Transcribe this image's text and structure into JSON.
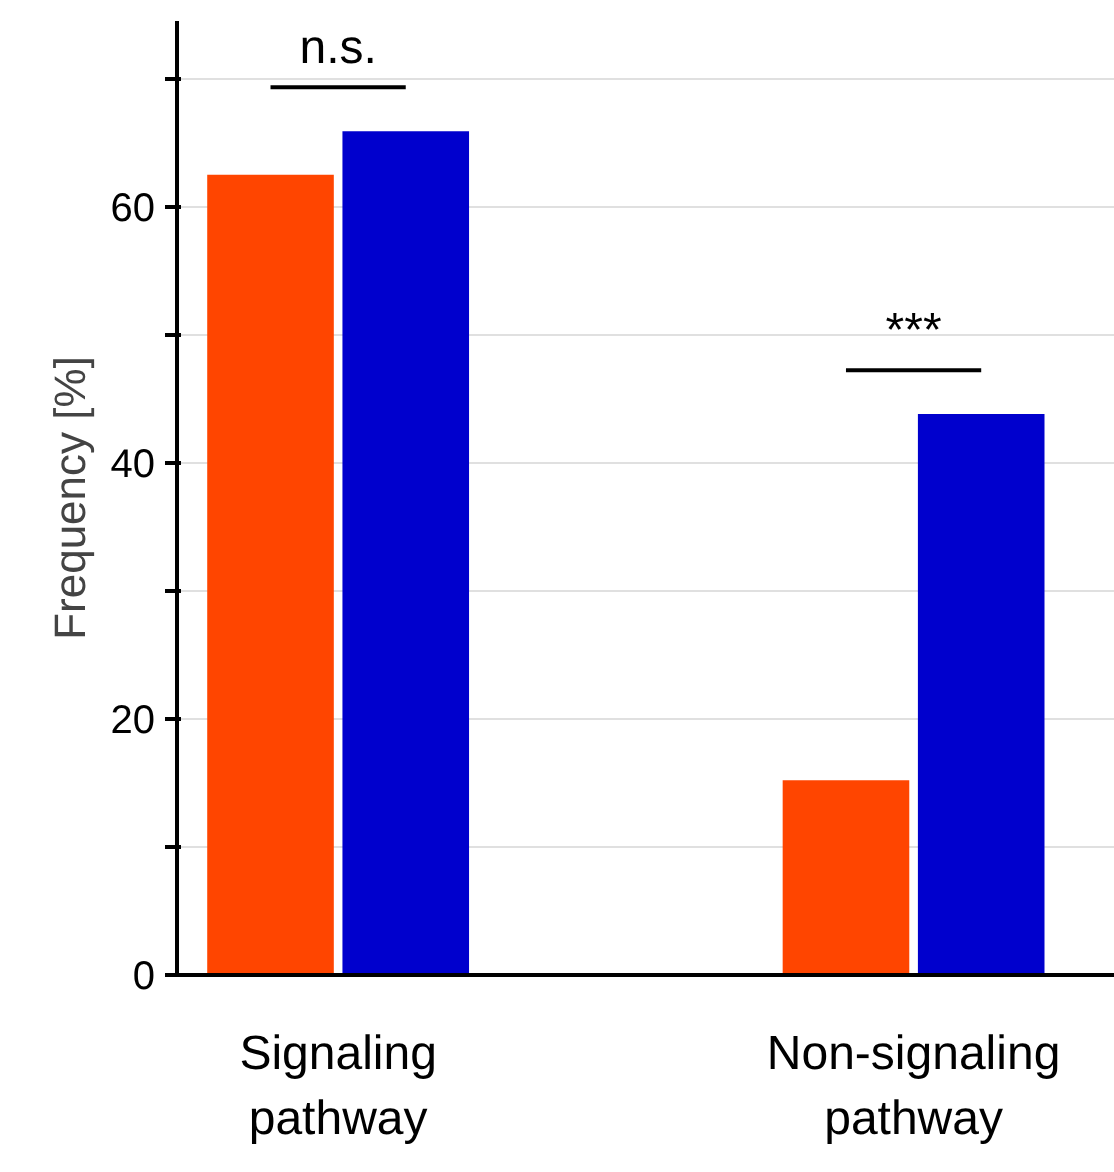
{
  "chart_data": {
    "type": "bar",
    "ylabel": "Frequency [%]",
    "categories": [
      "Signaling pathway",
      "Non-signaling pathway"
    ],
    "series": [
      {
        "color": "#ff4500",
        "values": [
          62.5,
          15.2
        ]
      },
      {
        "color": "#0000cd",
        "values": [
          65.9,
          43.8
        ]
      }
    ],
    "ylim": [
      0,
      74.5
    ],
    "yticks": [
      0,
      {
        "value": 10,
        "label": null
      },
      20,
      {
        "value": 30,
        "label": null
      },
      40,
      {
        "value": 50,
        "label": null
      },
      60,
      {
        "value": 70,
        "label": null
      }
    ],
    "grid": "y",
    "annotations": [
      "n.s.",
      "***"
    ]
  }
}
